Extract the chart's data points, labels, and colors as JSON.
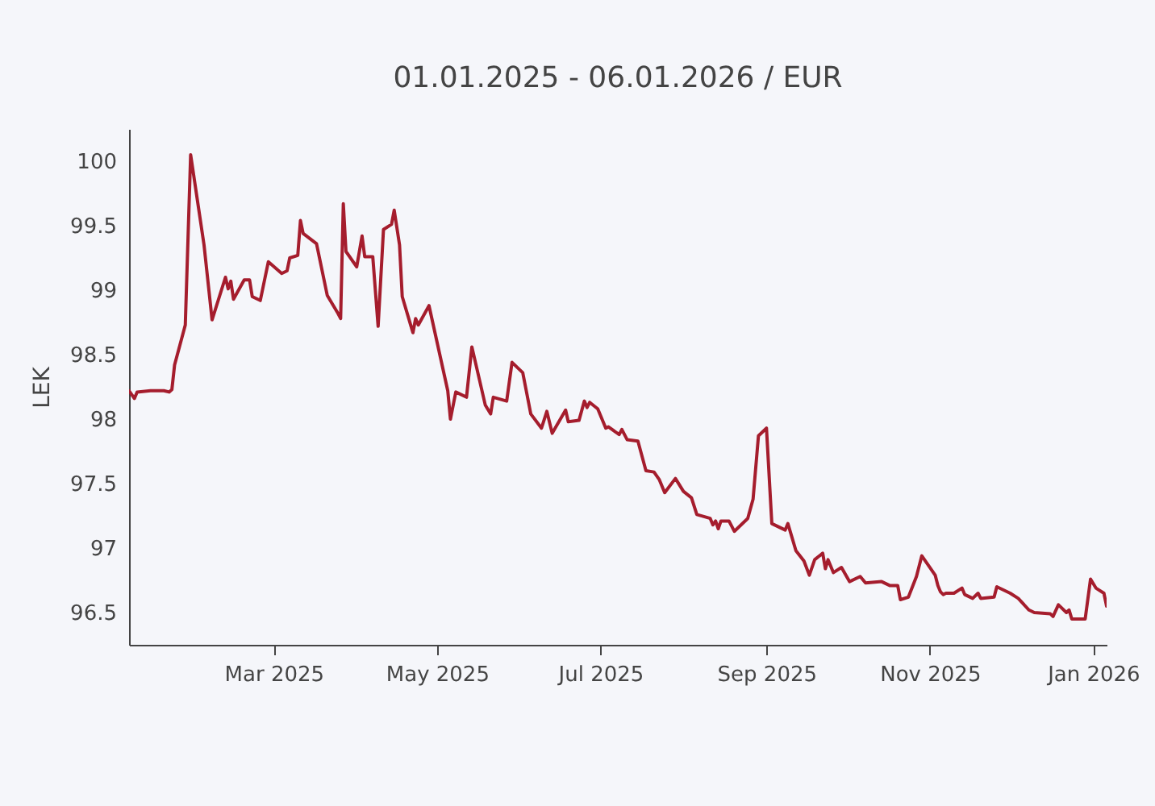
{
  "chart_data": {
    "type": "line",
    "title": "01.01.2025 - 06.01.2026 / EUR",
    "ylabel": "LEK",
    "x": [
      "2025-01-06",
      "2025-01-08",
      "2025-01-09",
      "2025-01-14",
      "2025-01-19",
      "2025-01-21",
      "2025-01-22",
      "2025-01-23",
      "2025-01-27",
      "2025-01-29",
      "2025-02-03",
      "2025-02-06",
      "2025-02-11",
      "2025-02-12",
      "2025-02-13",
      "2025-02-14",
      "2025-02-18",
      "2025-02-20",
      "2025-02-21",
      "2025-02-24",
      "2025-02-27",
      "2025-03-04",
      "2025-03-06",
      "2025-03-07",
      "2025-03-10",
      "2025-03-11",
      "2025-03-12",
      "2025-03-17",
      "2025-03-21",
      "2025-03-25",
      "2025-03-26",
      "2025-03-27",
      "2025-03-28",
      "2025-04-01",
      "2025-04-03",
      "2025-04-04",
      "2025-04-07",
      "2025-04-09",
      "2025-04-11",
      "2025-04-14",
      "2025-04-15",
      "2025-04-17",
      "2025-04-18",
      "2025-04-22",
      "2025-04-23",
      "2025-04-24",
      "2025-04-28",
      "2025-05-05",
      "2025-05-06",
      "2025-05-08",
      "2025-05-12",
      "2025-05-14",
      "2025-05-19",
      "2025-05-21",
      "2025-05-22",
      "2025-05-27",
      "2025-05-29",
      "2025-06-02",
      "2025-06-05",
      "2025-06-09",
      "2025-06-11",
      "2025-06-13",
      "2025-06-18",
      "2025-06-19",
      "2025-06-23",
      "2025-06-25",
      "2025-06-26",
      "2025-06-27",
      "2025-06-30",
      "2025-07-03",
      "2025-07-04",
      "2025-07-08",
      "2025-07-09",
      "2025-07-11",
      "2025-07-15",
      "2025-07-18",
      "2025-07-21",
      "2025-07-23",
      "2025-07-25",
      "2025-07-29",
      "2025-08-01",
      "2025-08-04",
      "2025-08-06",
      "2025-08-11",
      "2025-08-12",
      "2025-08-13",
      "2025-08-14",
      "2025-08-15",
      "2025-08-18",
      "2025-08-20",
      "2025-08-25",
      "2025-08-27",
      "2025-08-29",
      "2025-09-01",
      "2025-09-03",
      "2025-09-08",
      "2025-09-09",
      "2025-09-12",
      "2025-09-15",
      "2025-09-17",
      "2025-09-19",
      "2025-09-22",
      "2025-09-23",
      "2025-09-24",
      "2025-09-26",
      "2025-09-29",
      "2025-10-02",
      "2025-10-06",
      "2025-10-08",
      "2025-10-14",
      "2025-10-17",
      "2025-10-20",
      "2025-10-21",
      "2025-10-24",
      "2025-10-27",
      "2025-10-29",
      "2025-11-03",
      "2025-11-04",
      "2025-11-05",
      "2025-11-06",
      "2025-11-07",
      "2025-11-10",
      "2025-11-13",
      "2025-11-14",
      "2025-11-17",
      "2025-11-19",
      "2025-11-20",
      "2025-11-25",
      "2025-11-26",
      "2025-12-01",
      "2025-12-04",
      "2025-12-08",
      "2025-12-10",
      "2025-12-16",
      "2025-12-17",
      "2025-12-19",
      "2025-12-22",
      "2025-12-23",
      "2025-12-24",
      "2025-12-29",
      "2025-12-31",
      "2026-01-02",
      "2026-01-05",
      "2026-01-06"
    ],
    "series": [
      {
        "color": "#a51d2d",
        "values": [
          98.22,
          98.16,
          98.21,
          98.22,
          98.22,
          98.21,
          98.23,
          98.42,
          98.73,
          100.05,
          99.35,
          98.77,
          99.1,
          99.01,
          99.07,
          98.93,
          99.08,
          99.08,
          98.95,
          98.92,
          99.22,
          99.13,
          99.15,
          99.25,
          99.27,
          99.54,
          99.44,
          99.36,
          98.96,
          98.82,
          98.78,
          99.67,
          99.3,
          99.18,
          99.42,
          99.26,
          99.26,
          98.72,
          99.47,
          99.51,
          99.62,
          99.35,
          98.95,
          98.67,
          98.78,
          98.73,
          98.88,
          98.22,
          98.0,
          98.21,
          98.17,
          98.56,
          98.11,
          98.04,
          98.17,
          98.14,
          98.44,
          98.36,
          98.04,
          97.93,
          98.06,
          97.89,
          98.07,
          97.98,
          97.99,
          98.14,
          98.09,
          98.13,
          98.08,
          97.93,
          97.94,
          97.88,
          97.92,
          97.84,
          97.83,
          97.6,
          97.59,
          97.53,
          97.43,
          97.54,
          97.44,
          97.39,
          97.26,
          97.23,
          97.18,
          97.21,
          97.15,
          97.21,
          97.21,
          97.13,
          97.23,
          97.38,
          97.87,
          97.93,
          97.19,
          97.14,
          97.19,
          96.98,
          96.9,
          96.79,
          96.91,
          96.96,
          96.84,
          96.91,
          96.81,
          96.85,
          96.74,
          96.78,
          96.73,
          96.74,
          96.71,
          96.71,
          96.6,
          96.62,
          96.78,
          96.94,
          96.79,
          96.71,
          96.66,
          96.64,
          96.65,
          96.65,
          96.69,
          96.64,
          96.61,
          96.65,
          96.61,
          96.62,
          96.7,
          96.65,
          96.61,
          96.52,
          96.5,
          96.49,
          96.47,
          96.56,
          96.5,
          96.52,
          96.45,
          96.45,
          96.76,
          96.69,
          96.65,
          96.55
        ]
      }
    ],
    "xlim": [
      "2025-01-06",
      "2026-01-06"
    ],
    "xticks": [
      {
        "value": "2025-03-01",
        "label": "Mar 2025"
      },
      {
        "value": "2025-05-01",
        "label": "May 2025"
      },
      {
        "value": "2025-07-01",
        "label": "Jul 2025"
      },
      {
        "value": "2025-09-01",
        "label": "Sep 2025"
      },
      {
        "value": "2025-11-01",
        "label": "Nov 2025"
      },
      {
        "value": "2026-01-01",
        "label": "Jan 2026"
      }
    ],
    "ylim": [
      96.25,
      100.25
    ],
    "yticks": [
      96.5,
      97,
      97.5,
      98,
      98.5,
      99,
      99.5,
      100
    ],
    "grid": false,
    "legend": false,
    "marker": "none",
    "line_style": "solid"
  }
}
